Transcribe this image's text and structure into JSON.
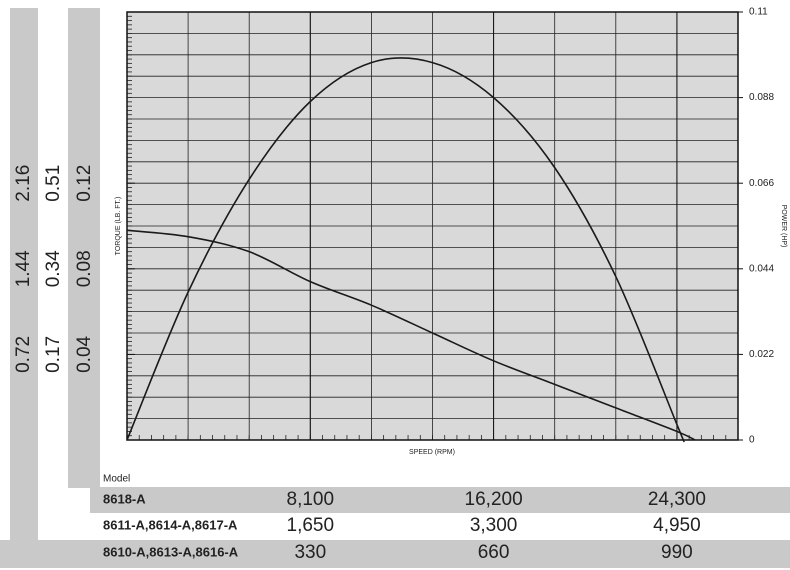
{
  "chart_data": {
    "type": "line",
    "x_label": "SPEED (RPM)",
    "y_label": "TORQUE (LB. FT.)",
    "y2_label": "POWER (HP)",
    "xlim": [
      0,
      27000
    ],
    "ylim": [
      0,
      0.2
    ],
    "y2lim": [
      0,
      0.11
    ],
    "y2ticks": [
      0,
      0.022,
      0.044,
      0.066,
      0.088,
      0.11
    ],
    "grid": true,
    "x": [
      0,
      2700,
      5400,
      8100,
      10800,
      13500,
      16200,
      18900,
      21600,
      24300,
      25100
    ],
    "series": [
      {
        "color": "#1a1a1a",
        "axis": "y",
        "values": [
          0.098,
          0.095,
          0.088,
          0.074,
          0.063,
          0.05,
          0.037,
          0.026,
          0.015,
          0.004,
          0
        ]
      },
      {
        "color": "#1a1a1a",
        "axis": "y2",
        "x": [
          0,
          2700,
          5400,
          8100,
          10800,
          13500,
          16200,
          18900,
          21600,
          24300,
          24580
        ],
        "values": [
          0,
          0.038,
          0.067,
          0.087,
          0.097,
          0.097,
          0.088,
          0.07,
          0.042,
          0.004,
          0
        ]
      }
    ],
    "model_label": "Model",
    "models": [
      {
        "name": "8618-A",
        "yticks": [
          0.04,
          0.08,
          0.12
        ],
        "xticks": [
          {
            "value": 8100,
            "label": "8,100"
          },
          {
            "value": 16200,
            "label": "16,200"
          },
          {
            "value": 24300,
            "label": "24,300"
          }
        ]
      },
      {
        "name": "8611-A,8614-A,8617-A",
        "xlim": [
          0,
          5500
        ],
        "ylim": [
          0,
          0.85
        ],
        "yticks": [
          0.17,
          0.34,
          0.51
        ],
        "xticks": [
          {
            "value": 1650,
            "label": "1,650"
          },
          {
            "value": 3300,
            "label": "3,300"
          },
          {
            "value": 4950,
            "label": "4,950"
          }
        ]
      },
      {
        "name": "8610-A,8613-A,8616-A",
        "xlim": [
          0,
          1100
        ],
        "ylim": [
          0,
          3.6
        ],
        "yticks": [
          0.72,
          1.44,
          2.16
        ],
        "xticks": [
          330,
          660,
          990
        ]
      }
    ]
  }
}
